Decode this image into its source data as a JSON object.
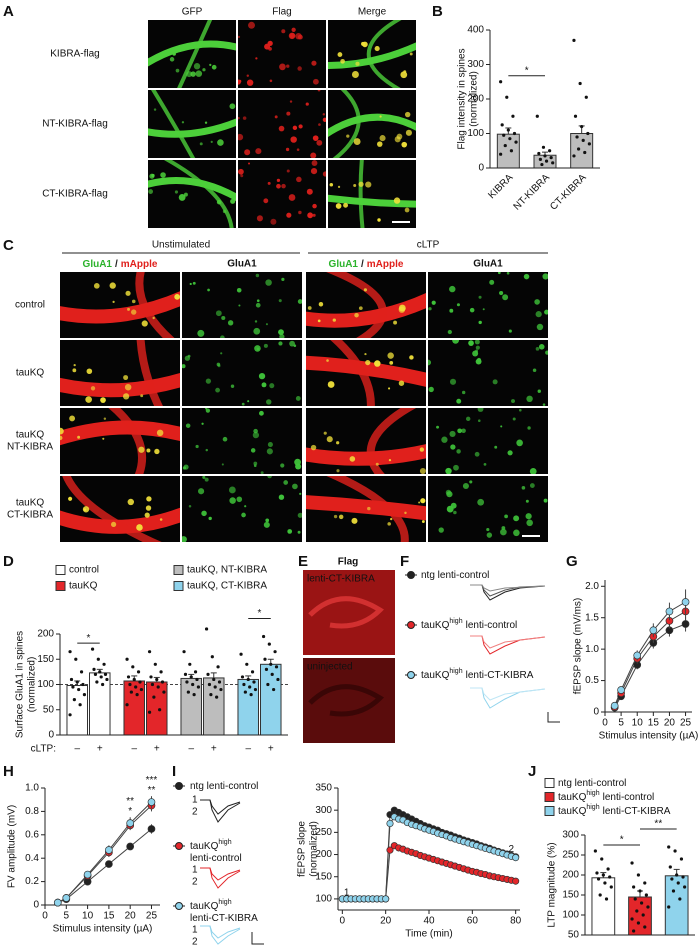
{
  "panel_a": {
    "label": "A",
    "columns": [
      "GFP",
      "Flag",
      "Merge"
    ],
    "rows": [
      "KIBRA-flag",
      "NT-KIBRA-flag",
      "CT-KIBRA-flag"
    ]
  },
  "panel_c": {
    "label": "C",
    "groups": [
      "Unstimulated",
      "cLTP"
    ],
    "merge_label": [
      "GluA1",
      "/",
      "mApple"
    ],
    "channel_label": "GluA1",
    "rows": [
      [
        "control"
      ],
      [
        "tauKQ"
      ],
      [
        "tauKQ",
        "NT-KIBRA"
      ],
      [
        "tauKQ",
        "CT-KIBRA"
      ]
    ]
  },
  "panel_e": {
    "label": "E",
    "title": "Flag",
    "images": [
      "lenti-CT-KIBRA",
      "uninjected"
    ]
  },
  "panel_f": {
    "label": "F",
    "legend": [
      [
        "ntg lenti-control"
      ],
      [
        "tauKQ",
        "high",
        "lenti-control"
      ],
      [
        "tauKQ",
        "high",
        "lenti-CT-KIBRA"
      ]
    ],
    "colors": [
      "#222222",
      "#e3262a",
      "#8fd3ec"
    ]
  },
  "panel_i": {
    "legend": [
      [
        [
          "ntg lenti-control"
        ]
      ],
      [
        [
          "tauKQ",
          "high"
        ],
        [
          "lenti-control"
        ]
      ],
      [
        [
          "tauKQ",
          "high"
        ],
        [
          "lenti-CT-KIBRA"
        ]
      ]
    ],
    "colors": [
      "#222222",
      "#e3262a",
      "#8fd3ec"
    ],
    "trace_marks": [
      "1",
      "2"
    ]
  },
  "chart_data": [
    {
      "label": "B",
      "type": "bar",
      "ylabel": [
        "Flag intensity in spines",
        "(normalized)"
      ],
      "categories": [
        "KIBRA",
        "NT-KIBRA",
        "CT-KIBRA"
      ],
      "values": [
        98,
        37,
        100
      ],
      "errors": [
        18,
        9,
        22
      ],
      "points": [
        [
          250,
          205,
          150,
          125,
          110,
          100,
          95,
          85,
          75,
          65,
          50,
          40
        ],
        [
          150,
          60,
          50,
          42,
          35,
          30,
          25,
          20,
          15,
          10
        ],
        [
          370,
          245,
          205,
          150,
          120,
          100,
          90,
          80,
          70,
          55,
          45,
          35
        ]
      ],
      "color": "#bdbdbd",
      "ylim": [
        0,
        400
      ],
      "yticks": [
        0,
        100,
        200,
        300,
        400
      ],
      "annotations": [
        {
          "between": [
            0,
            1
          ],
          "text": "*"
        }
      ]
    },
    {
      "label": "D",
      "type": "bar",
      "ylabel": [
        "Surface GluA1 in spines",
        "(normalized)"
      ],
      "legend": [
        "control",
        "tauKQ",
        "tauKQ, NT-KIBRA",
        "tauKQ, CT-KIBRA"
      ],
      "row_label": "cLTP:",
      "categories": [
        "–",
        "+",
        "–",
        "+",
        "–",
        "+",
        "–",
        "+"
      ],
      "values": [
        98,
        123,
        107,
        105,
        112,
        113,
        110,
        140
      ],
      "errors": [
        9,
        7,
        10,
        9,
        8,
        10,
        7,
        10
      ],
      "colors": [
        "#ffffff",
        "#ffffff",
        "#e3262a",
        "#e3262a",
        "#bdbdbd",
        "#bdbdbd",
        "#8fd3ec",
        "#8fd3ec"
      ],
      "points": [
        [
          165,
          150,
          125,
          110,
          105,
          100,
          95,
          90,
          80,
          70,
          60,
          40
        ],
        [
          170,
          150,
          140,
          130,
          125,
          120,
          120,
          115,
          110,
          105,
          100
        ],
        [
          150,
          135,
          125,
          115,
          110,
          105,
          100,
          95,
          90,
          85,
          80,
          60
        ],
        [
          165,
          140,
          125,
          115,
          110,
          105,
          100,
          95,
          85,
          75,
          50,
          45
        ],
        [
          165,
          140,
          125,
          120,
          115,
          110,
          105,
          100,
          95,
          85,
          80
        ],
        [
          210,
          155,
          135,
          120,
          110,
          105,
          100,
          95,
          90,
          80,
          75
        ],
        [
          160,
          140,
          125,
          115,
          110,
          105,
          100,
          95,
          90,
          85,
          80
        ],
        [
          195,
          180,
          165,
          150,
          140,
          135,
          130,
          120,
          110,
          100,
          90
        ]
      ],
      "reference_line": 100,
      "ylim": [
        0,
        200
      ],
      "yticks": [
        0,
        50,
        100,
        150,
        200
      ],
      "annotations": [
        {
          "between": [
            0,
            1
          ],
          "text": "*"
        },
        {
          "between": [
            6,
            7
          ],
          "text": "*"
        }
      ]
    },
    {
      "label": "G",
      "type": "line",
      "ylabel": [
        "fEPSP slope (mV/ms)"
      ],
      "xlabel": "Stimulus intensity (µA)",
      "x": [
        3,
        5,
        10,
        15,
        20,
        25
      ],
      "series": [
        {
          "color": "#222222",
          "values": [
            0.07,
            0.25,
            0.75,
            1.1,
            1.3,
            1.4
          ],
          "errors": [
            0.02,
            0.04,
            0.07,
            0.09,
            0.1,
            0.12
          ]
        },
        {
          "color": "#e3262a",
          "values": [
            0.08,
            0.3,
            0.85,
            1.2,
            1.45,
            1.6
          ],
          "errors": [
            0.02,
            0.05,
            0.08,
            0.1,
            0.12,
            0.14
          ]
        },
        {
          "color": "#8fd3ec",
          "values": [
            0.1,
            0.35,
            0.9,
            1.3,
            1.6,
            1.75
          ],
          "errors": [
            0.02,
            0.05,
            0.08,
            0.11,
            0.14,
            0.2
          ]
        }
      ],
      "xlim": [
        0,
        27
      ],
      "xticks": [
        0,
        5,
        10,
        15,
        20,
        25
      ],
      "ylim": [
        0,
        2.1
      ],
      "yticks": [
        0,
        0.5,
        {
          "value": 1,
          "label": "1.0"
        },
        1.5,
        {
          "value": 2,
          "label": "2.0"
        }
      ]
    },
    {
      "label": "H",
      "type": "line",
      "ylabel": [
        "FV amplitude (mV)"
      ],
      "xlabel": "Stimulus intensity (µA)",
      "x": [
        3,
        5,
        10,
        15,
        20,
        25
      ],
      "series": [
        {
          "color": "#222222",
          "values": [
            0.02,
            0.05,
            0.2,
            0.35,
            0.5,
            0.65
          ],
          "errors": [
            0.01,
            0.01,
            0.02,
            0.03,
            0.03,
            0.04
          ]
        },
        {
          "color": "#e3262a",
          "values": [
            0.02,
            0.06,
            0.25,
            0.45,
            0.68,
            0.85
          ],
          "errors": [
            0.01,
            0.01,
            0.03,
            0.04,
            0.04,
            0.05
          ]
        },
        {
          "color": "#8fd3ec",
          "values": [
            0.02,
            0.06,
            0.26,
            0.47,
            0.7,
            0.88
          ],
          "errors": [
            0.01,
            0.01,
            0.03,
            0.04,
            0.05,
            0.05
          ]
        }
      ],
      "xlim": [
        0,
        27
      ],
      "xticks": [
        0,
        5,
        10,
        15,
        20,
        25
      ],
      "ylim": [
        0,
        1
      ],
      "yticks": [
        0,
        0.2,
        0.4,
        0.6,
        0.8,
        {
          "value": 1,
          "label": "1.0"
        }
      ],
      "annotations": [
        {
          "x": 20,
          "text": "**"
        },
        {
          "x": 20,
          "text": "*"
        },
        {
          "x": 25,
          "text": "***"
        },
        {
          "x": 25,
          "text": "**"
        }
      ]
    },
    {
      "label": "I",
      "type": "line",
      "ylabel": [
        "fEPSP slope",
        "(normalized)"
      ],
      "xlabel": "Time (min)",
      "x": [
        0,
        2,
        4,
        6,
        8,
        10,
        12,
        14,
        16,
        18,
        20,
        22,
        24,
        26,
        28,
        30,
        32,
        34,
        36,
        38,
        40,
        42,
        44,
        46,
        48,
        50,
        52,
        54,
        56,
        58,
        60,
        62,
        64,
        66,
        68,
        70,
        72,
        74,
        76,
        78,
        80
      ],
      "series": [
        {
          "color": "#222222",
          "values": [
            100,
            100,
            100,
            100,
            100,
            100,
            100,
            100,
            100,
            100,
            100,
            290,
            300,
            295,
            290,
            285,
            280,
            275,
            270,
            265,
            262,
            258,
            255,
            250,
            247,
            244,
            240,
            237,
            233,
            230,
            227,
            224,
            220,
            217,
            214,
            210,
            207,
            204,
            201,
            198,
            195
          ]
        },
        {
          "color": "#e3262a",
          "values": [
            100,
            100,
            100,
            100,
            100,
            100,
            100,
            100,
            100,
            100,
            100,
            210,
            220,
            215,
            212,
            208,
            205,
            202,
            198,
            195,
            192,
            189,
            186,
            183,
            180,
            177,
            174,
            171,
            168,
            165,
            162,
            160,
            157,
            155,
            152,
            150,
            148,
            146,
            144,
            142,
            140
          ]
        },
        {
          "color": "#8fd3ec",
          "values": [
            100,
            100,
            100,
            100,
            100,
            100,
            100,
            100,
            100,
            100,
            100,
            270,
            285,
            280,
            278,
            272,
            268,
            265,
            262,
            258,
            255,
            252,
            248,
            245,
            242,
            238,
            235,
            232,
            229,
            226,
            223,
            220,
            217,
            214,
            211,
            208,
            205,
            202,
            199,
            196,
            193
          ]
        }
      ],
      "xlim": [
        -2,
        82
      ],
      "xticks": [
        0,
        20,
        40,
        60,
        80
      ],
      "ylim": [
        75,
        350
      ],
      "yticks": [
        100,
        150,
        200,
        250,
        300,
        350
      ],
      "annotations": [
        {
          "x": 2,
          "text": "1"
        },
        {
          "x": 78,
          "text": "2"
        }
      ]
    },
    {
      "label": "J",
      "type": "bar",
      "ylabel": [
        "LTP magnitude (%)"
      ],
      "legend": [
        [
          "ntg lenti-control"
        ],
        [
          "tauKQ",
          "high",
          "lenti-control"
        ],
        [
          "tauKQ",
          "high",
          "lenti-CT-KIBRA"
        ]
      ],
      "categories": [
        null,
        null,
        null
      ],
      "values": [
        193,
        145,
        198
      ],
      "errors": [
        13,
        15,
        16
      ],
      "colors": [
        "#ffffff",
        "#e3262a",
        "#8fd3ec"
      ],
      "points": [
        [
          260,
          240,
          215,
          205,
          200,
          195,
          190,
          180,
          170,
          150,
          140
        ],
        [
          230,
          200,
          180,
          170,
          160,
          150,
          140,
          130,
          120,
          110,
          100,
          90,
          80,
          70,
          60
        ],
        [
          270,
          260,
          240,
          220,
          200,
          195,
          190,
          180,
          170,
          160,
          140,
          120
        ]
      ],
      "ylim": [
        50,
        300
      ],
      "yticks": [
        50,
        100,
        150,
        200,
        250,
        300
      ],
      "annotations": [
        {
          "between": [
            0,
            1
          ],
          "text": "*"
        },
        {
          "between": [
            1,
            2
          ],
          "text": "**"
        }
      ]
    }
  ]
}
